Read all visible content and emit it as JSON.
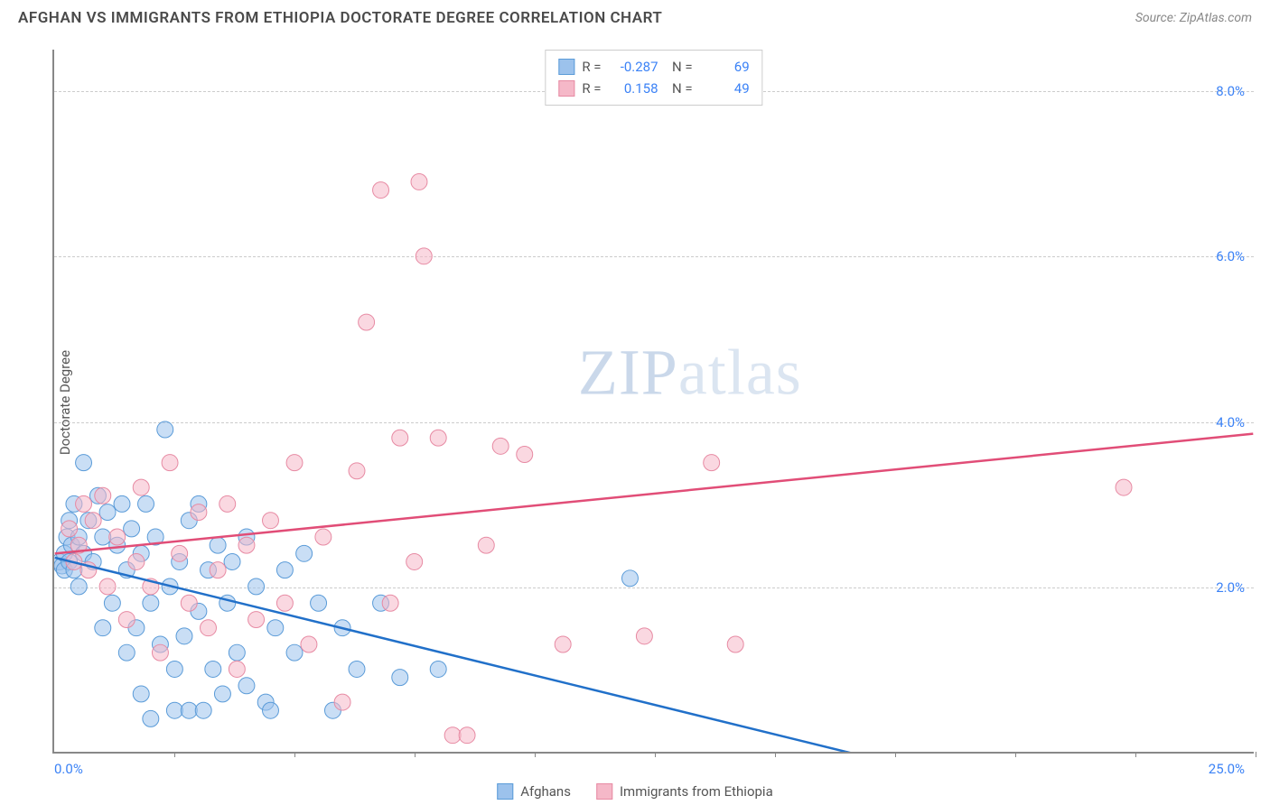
{
  "title": "AFGHAN VS IMMIGRANTS FROM ETHIOPIA DOCTORATE DEGREE CORRELATION CHART",
  "source": "Source: ZipAtlas.com",
  "watermark_zip": "ZIP",
  "watermark_atlas": "atlas",
  "ylabel": "Doctorate Degree",
  "chart": {
    "type": "scatter_with_trendlines",
    "background_color": "#ffffff",
    "grid_color": "#cccccc",
    "axis_color": "#888888",
    "x_min": 0.0,
    "x_max": 25.0,
    "y_min": 0.0,
    "y_max": 8.5,
    "x_origin_label": "0.0%",
    "x_max_label": "25.0%",
    "y_ticks": [
      {
        "value": 2.0,
        "label": "2.0%"
      },
      {
        "value": 4.0,
        "label": "4.0%"
      },
      {
        "value": 6.0,
        "label": "6.0%"
      },
      {
        "value": 8.0,
        "label": "8.0%"
      }
    ],
    "x_tick_marks": [
      2.5,
      5.0,
      7.5,
      10.0,
      12.5,
      15.0,
      17.5,
      20.0,
      22.5,
      25.0
    ],
    "marker_radius": 9,
    "marker_opacity": 0.55,
    "line_width": 2.5,
    "series": [
      {
        "name": "Afghans",
        "color_fill": "#9cc2ec",
        "color_stroke": "#5a9bd8",
        "line_color": "#2170c9",
        "R": "-0.287",
        "N": "69",
        "trend_start": {
          "x": 0.0,
          "y": 2.35
        },
        "trend_end": {
          "x": 18.0,
          "y": -0.2
        },
        "trend_zero_x": 16.5,
        "points": [
          [
            0.1,
            2.3
          ],
          [
            0.15,
            2.25
          ],
          [
            0.2,
            2.4
          ],
          [
            0.2,
            2.2
          ],
          [
            0.25,
            2.6
          ],
          [
            0.3,
            2.3
          ],
          [
            0.3,
            2.8
          ],
          [
            0.35,
            2.5
          ],
          [
            0.4,
            2.2
          ],
          [
            0.4,
            3.0
          ],
          [
            0.5,
            2.6
          ],
          [
            0.5,
            2.0
          ],
          [
            0.6,
            2.4
          ],
          [
            0.6,
            3.5
          ],
          [
            0.7,
            2.8
          ],
          [
            0.8,
            2.3
          ],
          [
            0.9,
            3.1
          ],
          [
            1.0,
            2.6
          ],
          [
            1.0,
            1.5
          ],
          [
            1.1,
            2.9
          ],
          [
            1.2,
            1.8
          ],
          [
            1.3,
            2.5
          ],
          [
            1.4,
            3.0
          ],
          [
            1.5,
            1.2
          ],
          [
            1.5,
            2.2
          ],
          [
            1.6,
            2.7
          ],
          [
            1.7,
            1.5
          ],
          [
            1.8,
            2.4
          ],
          [
            1.8,
            0.7
          ],
          [
            1.9,
            3.0
          ],
          [
            2.0,
            1.8
          ],
          [
            2.0,
            0.4
          ],
          [
            2.1,
            2.6
          ],
          [
            2.2,
            1.3
          ],
          [
            2.3,
            3.9
          ],
          [
            2.4,
            2.0
          ],
          [
            2.5,
            1.0
          ],
          [
            2.5,
            0.5
          ],
          [
            2.6,
            2.3
          ],
          [
            2.7,
            1.4
          ],
          [
            2.8,
            2.8
          ],
          [
            2.8,
            0.5
          ],
          [
            3.0,
            3.0
          ],
          [
            3.0,
            1.7
          ],
          [
            3.1,
            0.5
          ],
          [
            3.2,
            2.2
          ],
          [
            3.3,
            1.0
          ],
          [
            3.4,
            2.5
          ],
          [
            3.5,
            0.7
          ],
          [
            3.6,
            1.8
          ],
          [
            3.7,
            2.3
          ],
          [
            3.8,
            1.2
          ],
          [
            4.0,
            2.6
          ],
          [
            4.0,
            0.8
          ],
          [
            4.2,
            2.0
          ],
          [
            4.4,
            0.6
          ],
          [
            4.5,
            0.5
          ],
          [
            4.6,
            1.5
          ],
          [
            4.8,
            2.2
          ],
          [
            5.0,
            1.2
          ],
          [
            5.2,
            2.4
          ],
          [
            5.5,
            1.8
          ],
          [
            5.8,
            0.5
          ],
          [
            6.0,
            1.5
          ],
          [
            6.3,
            1.0
          ],
          [
            6.8,
            1.8
          ],
          [
            7.2,
            0.9
          ],
          [
            8.0,
            1.0
          ],
          [
            12.0,
            2.1
          ]
        ]
      },
      {
        "name": "Immigrants from Ethiopia",
        "color_fill": "#f5b8c8",
        "color_stroke": "#e78aa3",
        "line_color": "#e14d77",
        "R": "0.158",
        "N": "49",
        "trend_start": {
          "x": 0.0,
          "y": 2.4
        },
        "trend_end": {
          "x": 25.0,
          "y": 3.85
        },
        "points": [
          [
            0.3,
            2.7
          ],
          [
            0.4,
            2.3
          ],
          [
            0.5,
            2.5
          ],
          [
            0.6,
            3.0
          ],
          [
            0.7,
            2.2
          ],
          [
            0.8,
            2.8
          ],
          [
            1.0,
            3.1
          ],
          [
            1.1,
            2.0
          ],
          [
            1.3,
            2.6
          ],
          [
            1.5,
            1.6
          ],
          [
            1.7,
            2.3
          ],
          [
            1.8,
            3.2
          ],
          [
            2.0,
            2.0
          ],
          [
            2.2,
            1.2
          ],
          [
            2.4,
            3.5
          ],
          [
            2.6,
            2.4
          ],
          [
            2.8,
            1.8
          ],
          [
            3.0,
            2.9
          ],
          [
            3.2,
            1.5
          ],
          [
            3.4,
            2.2
          ],
          [
            3.6,
            3.0
          ],
          [
            3.8,
            1.0
          ],
          [
            4.0,
            2.5
          ],
          [
            4.2,
            1.6
          ],
          [
            4.5,
            2.8
          ],
          [
            4.8,
            1.8
          ],
          [
            5.0,
            3.5
          ],
          [
            5.3,
            1.3
          ],
          [
            5.6,
            2.6
          ],
          [
            6.0,
            0.6
          ],
          [
            6.3,
            3.4
          ],
          [
            6.5,
            5.2
          ],
          [
            6.8,
            6.8
          ],
          [
            7.0,
            1.8
          ],
          [
            7.2,
            3.8
          ],
          [
            7.5,
            2.3
          ],
          [
            7.6,
            6.9
          ],
          [
            7.7,
            6.0
          ],
          [
            8.0,
            3.8
          ],
          [
            8.3,
            0.2
          ],
          [
            8.6,
            0.2
          ],
          [
            9.0,
            2.5
          ],
          [
            9.3,
            3.7
          ],
          [
            9.8,
            3.6
          ],
          [
            10.6,
            1.3
          ],
          [
            12.3,
            1.4
          ],
          [
            13.7,
            3.5
          ],
          [
            14.2,
            1.3
          ],
          [
            22.3,
            3.2
          ]
        ]
      }
    ]
  }
}
